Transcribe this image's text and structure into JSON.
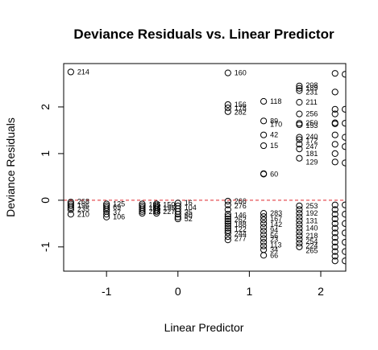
{
  "chart_data": {
    "type": "scatter",
    "title": "Deviance Residuals vs. Linear Predictor",
    "xlabel": "Linear Predictor",
    "ylabel": "Deviance Residuals",
    "xlim": [
      -1.6,
      2.35
    ],
    "ylim": [
      -1.52,
      2.93
    ],
    "x_ticks": [
      -1,
      0,
      1,
      2
    ],
    "x_tick_labels": [
      "-1",
      "0",
      "1",
      "2"
    ],
    "y_ticks": [
      -1,
      0,
      1,
      2
    ],
    "y_tick_labels": [
      "-1",
      "0",
      "1",
      "2"
    ],
    "reference_line": {
      "y": 0,
      "style": "dashed",
      "color": "#e0262b"
    },
    "grid": false,
    "legend": "none",
    "marker_color": "#000000",
    "x_columns": [
      -1.5,
      -1.0,
      -0.5,
      -0.3,
      0.0,
      0.7,
      1.2,
      1.7,
      2.2
    ],
    "points": [
      {
        "x": -1.5,
        "y": 2.75
      },
      {
        "x": -1.5,
        "y": -0.04
      },
      {
        "x": -1.5,
        "y": -0.08
      },
      {
        "x": -1.5,
        "y": -0.12
      },
      {
        "x": -1.5,
        "y": -0.16
      },
      {
        "x": -1.5,
        "y": -0.2
      },
      {
        "x": -1.5,
        "y": -0.3
      },
      {
        "x": -1.0,
        "y": -0.08
      },
      {
        "x": -1.0,
        "y": -0.12
      },
      {
        "x": -1.0,
        "y": -0.16
      },
      {
        "x": -1.0,
        "y": -0.2
      },
      {
        "x": -1.0,
        "y": -0.24
      },
      {
        "x": -1.0,
        "y": -0.3
      },
      {
        "x": -1.0,
        "y": -0.36
      },
      {
        "x": -0.5,
        "y": -0.08
      },
      {
        "x": -0.5,
        "y": -0.12
      },
      {
        "x": -0.5,
        "y": -0.16
      },
      {
        "x": -0.5,
        "y": -0.2
      },
      {
        "x": -0.5,
        "y": -0.24
      },
      {
        "x": -0.5,
        "y": -0.28
      },
      {
        "x": -0.3,
        "y": -0.08
      },
      {
        "x": -0.3,
        "y": -0.12
      },
      {
        "x": -0.3,
        "y": -0.16
      },
      {
        "x": -0.3,
        "y": -0.2
      },
      {
        "x": -0.3,
        "y": -0.24
      },
      {
        "x": -0.3,
        "y": -0.28
      },
      {
        "x": 0.0,
        "y": -0.06
      },
      {
        "x": 0.0,
        "y": -0.12
      },
      {
        "x": 0.0,
        "y": -0.18
      },
      {
        "x": 0.0,
        "y": -0.24
      },
      {
        "x": 0.0,
        "y": -0.3
      },
      {
        "x": 0.0,
        "y": -0.36
      },
      {
        "x": 0.0,
        "y": -0.4
      },
      {
        "x": 0.7,
        "y": 2.73
      },
      {
        "x": 0.7,
        "y": 2.05
      },
      {
        "x": 0.7,
        "y": 1.98
      },
      {
        "x": 0.7,
        "y": 1.9
      },
      {
        "x": 0.7,
        "y": -0.02
      },
      {
        "x": 0.7,
        "y": -0.1
      },
      {
        "x": 0.7,
        "y": -0.2
      },
      {
        "x": 0.7,
        "y": -0.3
      },
      {
        "x": 0.7,
        "y": -0.35
      },
      {
        "x": 0.7,
        "y": -0.4
      },
      {
        "x": 0.7,
        "y": -0.45
      },
      {
        "x": 0.7,
        "y": -0.5
      },
      {
        "x": 0.7,
        "y": -0.55
      },
      {
        "x": 0.7,
        "y": -0.6
      },
      {
        "x": 0.7,
        "y": -0.65
      },
      {
        "x": 0.7,
        "y": -0.7
      },
      {
        "x": 0.7,
        "y": -0.78
      },
      {
        "x": 0.7,
        "y": -0.85
      },
      {
        "x": 1.2,
        "y": 2.12
      },
      {
        "x": 1.2,
        "y": 1.7
      },
      {
        "x": 1.2,
        "y": 1.4
      },
      {
        "x": 1.2,
        "y": 1.17
      },
      {
        "x": 1.2,
        "y": 0.57
      },
      {
        "x": 1.2,
        "y": 0.56
      },
      {
        "x": 1.2,
        "y": -0.28
      },
      {
        "x": 1.2,
        "y": -0.35
      },
      {
        "x": 1.2,
        "y": -0.42
      },
      {
        "x": 1.2,
        "y": -0.5
      },
      {
        "x": 1.2,
        "y": -0.58
      },
      {
        "x": 1.2,
        "y": -0.66
      },
      {
        "x": 1.2,
        "y": -0.74
      },
      {
        "x": 1.2,
        "y": -0.82
      },
      {
        "x": 1.2,
        "y": -0.9
      },
      {
        "x": 1.2,
        "y": -0.98
      },
      {
        "x": 1.2,
        "y": -1.06
      },
      {
        "x": 1.2,
        "y": -1.18
      },
      {
        "x": 1.7,
        "y": 2.45
      },
      {
        "x": 1.7,
        "y": 2.4
      },
      {
        "x": 1.7,
        "y": 2.35
      },
      {
        "x": 1.7,
        "y": 2.1
      },
      {
        "x": 1.7,
        "y": 1.85
      },
      {
        "x": 1.7,
        "y": 1.65
      },
      {
        "x": 1.7,
        "y": 1.62
      },
      {
        "x": 1.7,
        "y": 1.35
      },
      {
        "x": 1.7,
        "y": 1.3
      },
      {
        "x": 1.7,
        "y": 1.2
      },
      {
        "x": 1.7,
        "y": 1.1
      },
      {
        "x": 1.7,
        "y": 0.9
      },
      {
        "x": 1.7,
        "y": -0.12
      },
      {
        "x": 1.7,
        "y": -0.2
      },
      {
        "x": 1.7,
        "y": -0.28
      },
      {
        "x": 1.7,
        "y": -0.36
      },
      {
        "x": 1.7,
        "y": -0.44
      },
      {
        "x": 1.7,
        "y": -0.52
      },
      {
        "x": 1.7,
        "y": -0.6
      },
      {
        "x": 1.7,
        "y": -0.68
      },
      {
        "x": 1.7,
        "y": -0.76
      },
      {
        "x": 1.7,
        "y": -0.84
      },
      {
        "x": 1.7,
        "y": -0.92
      },
      {
        "x": 1.7,
        "y": -1.0
      },
      {
        "x": 2.2,
        "y": 2.72
      },
      {
        "x": 2.2,
        "y": 2.32
      },
      {
        "x": 2.2,
        "y": 1.95
      },
      {
        "x": 2.2,
        "y": 1.85
      },
      {
        "x": 2.2,
        "y": 1.66
      },
      {
        "x": 2.2,
        "y": 1.64
      },
      {
        "x": 2.2,
        "y": 1.4
      },
      {
        "x": 2.2,
        "y": 1.2
      },
      {
        "x": 2.2,
        "y": 1.0
      },
      {
        "x": 2.2,
        "y": 0.82
      },
      {
        "x": 2.2,
        "y": -0.1
      },
      {
        "x": 2.2,
        "y": -0.2
      },
      {
        "x": 2.2,
        "y": -0.3
      },
      {
        "x": 2.2,
        "y": -0.4
      },
      {
        "x": 2.2,
        "y": -0.5
      },
      {
        "x": 2.2,
        "y": -0.6
      },
      {
        "x": 2.2,
        "y": -0.7
      },
      {
        "x": 2.2,
        "y": -0.8
      },
      {
        "x": 2.2,
        "y": -0.9
      },
      {
        "x": 2.2,
        "y": -1.0
      },
      {
        "x": 2.2,
        "y": -1.1
      },
      {
        "x": 2.2,
        "y": -1.2
      },
      {
        "x": 2.2,
        "y": -1.3
      },
      {
        "x": 2.34,
        "y": 2.7
      },
      {
        "x": 2.34,
        "y": 1.95
      },
      {
        "x": 2.34,
        "y": 1.65
      },
      {
        "x": 2.34,
        "y": 1.35
      },
      {
        "x": 2.34,
        "y": 1.15
      },
      {
        "x": 2.34,
        "y": 0.8
      },
      {
        "x": 2.34,
        "y": -0.1
      },
      {
        "x": 2.34,
        "y": -0.3
      },
      {
        "x": 2.34,
        "y": -0.5
      },
      {
        "x": 2.34,
        "y": -0.7
      },
      {
        "x": 2.34,
        "y": -0.9
      },
      {
        "x": 2.34,
        "y": -1.1
      },
      {
        "x": 2.34,
        "y": -1.3
      }
    ],
    "annotations": [
      {
        "x": -1.5,
        "y": 2.75,
        "label": "214"
      },
      {
        "x": -1.5,
        "y": -0.03,
        "label": "268"
      },
      {
        "x": -1.5,
        "y": -0.11,
        "label": "196"
      },
      {
        "x": -1.5,
        "y": -0.19,
        "label": "235"
      },
      {
        "x": -1.5,
        "y": -0.3,
        "label": "210"
      },
      {
        "x": -1.0,
        "y": -0.08,
        "label": "125"
      },
      {
        "x": -1.0,
        "y": -0.15,
        "label": "69"
      },
      {
        "x": -1.0,
        "y": -0.26,
        "label": "37"
      },
      {
        "x": -1.0,
        "y": -0.36,
        "label": "106"
      },
      {
        "x": -0.5,
        "y": -0.1,
        "label": "185"
      },
      {
        "x": -0.5,
        "y": -0.17,
        "label": "186"
      },
      {
        "x": -0.5,
        "y": -0.24,
        "label": "218"
      },
      {
        "x": -0.3,
        "y": -0.1,
        "label": "150"
      },
      {
        "x": -0.3,
        "y": -0.17,
        "label": "195"
      },
      {
        "x": -0.3,
        "y": -0.24,
        "label": "227"
      },
      {
        "x": 0.0,
        "y": -0.05,
        "label": "16"
      },
      {
        "x": 0.0,
        "y": -0.16,
        "label": "104"
      },
      {
        "x": 0.0,
        "y": -0.26,
        "label": "35"
      },
      {
        "x": 0.0,
        "y": -0.33,
        "label": "50"
      },
      {
        "x": 0.0,
        "y": -0.4,
        "label": "52"
      },
      {
        "x": 0.7,
        "y": 2.73,
        "label": "160"
      },
      {
        "x": 0.7,
        "y": 2.05,
        "label": "156"
      },
      {
        "x": 0.7,
        "y": 1.97,
        "label": "178"
      },
      {
        "x": 0.7,
        "y": 1.89,
        "label": "282"
      },
      {
        "x": 0.7,
        "y": -0.02,
        "label": "266"
      },
      {
        "x": 0.7,
        "y": -0.12,
        "label": "276"
      },
      {
        "x": 0.7,
        "y": -0.32,
        "label": "146"
      },
      {
        "x": 0.7,
        "y": -0.42,
        "label": "262"
      },
      {
        "x": 0.7,
        "y": -0.52,
        "label": "188"
      },
      {
        "x": 0.7,
        "y": -0.62,
        "label": "122"
      },
      {
        "x": 0.7,
        "y": -0.72,
        "label": "244"
      },
      {
        "x": 0.7,
        "y": -0.82,
        "label": "277"
      },
      {
        "x": 1.2,
        "y": 2.12,
        "label": "118"
      },
      {
        "x": 1.2,
        "y": 1.7,
        "label": "89"
      },
      {
        "x": 1.2,
        "y": 1.63,
        "label": "170"
      },
      {
        "x": 1.2,
        "y": 1.4,
        "label": "42"
      },
      {
        "x": 1.2,
        "y": 1.17,
        "label": "15"
      },
      {
        "x": 1.2,
        "y": 0.56,
        "label": "60"
      },
      {
        "x": 1.2,
        "y": -0.28,
        "label": "283"
      },
      {
        "x": 1.2,
        "y": -0.4,
        "label": "167"
      },
      {
        "x": 1.2,
        "y": -0.52,
        "label": "142"
      },
      {
        "x": 1.2,
        "y": -0.64,
        "label": "94"
      },
      {
        "x": 1.2,
        "y": -0.76,
        "label": "56"
      },
      {
        "x": 1.2,
        "y": -0.84,
        "label": "23"
      },
      {
        "x": 1.2,
        "y": -0.96,
        "label": "113"
      },
      {
        "x": 1.2,
        "y": -1.06,
        "label": "34"
      },
      {
        "x": 1.2,
        "y": -1.18,
        "label": "66"
      },
      {
        "x": 1.7,
        "y": 2.46,
        "label": "208"
      },
      {
        "x": 1.7,
        "y": 2.4,
        "label": "189"
      },
      {
        "x": 1.7,
        "y": 2.32,
        "label": "231"
      },
      {
        "x": 1.7,
        "y": 2.1,
        "label": "211"
      },
      {
        "x": 1.7,
        "y": 1.85,
        "label": "256"
      },
      {
        "x": 1.7,
        "y": 1.65,
        "label": "250"
      },
      {
        "x": 1.7,
        "y": 1.6,
        "label": "153"
      },
      {
        "x": 1.7,
        "y": 1.36,
        "label": "240"
      },
      {
        "x": 1.7,
        "y": 1.28,
        "label": "172"
      },
      {
        "x": 1.7,
        "y": 1.15,
        "label": "247"
      },
      {
        "x": 1.7,
        "y": 1.0,
        "label": "181"
      },
      {
        "x": 1.7,
        "y": 0.82,
        "label": "129"
      },
      {
        "x": 1.7,
        "y": -0.12,
        "label": "253"
      },
      {
        "x": 1.7,
        "y": -0.28,
        "label": "192"
      },
      {
        "x": 1.7,
        "y": -0.44,
        "label": "131"
      },
      {
        "x": 1.7,
        "y": -0.6,
        "label": "140"
      },
      {
        "x": 1.7,
        "y": -0.76,
        "label": "218"
      },
      {
        "x": 1.7,
        "y": -0.88,
        "label": "254"
      },
      {
        "x": 1.7,
        "y": -0.98,
        "label": "224"
      },
      {
        "x": 1.7,
        "y": -1.08,
        "label": "265"
      }
    ]
  }
}
